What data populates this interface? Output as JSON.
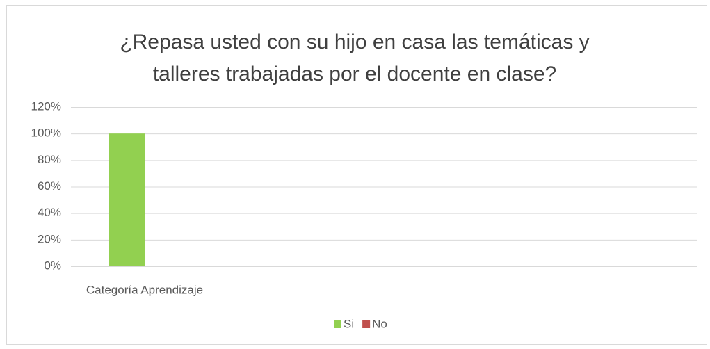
{
  "chart_data": {
    "type": "bar",
    "title": "¿Repasa usted con su hijo en casa las temáticas y talleres trabajadas por el docente en clase?",
    "categories": [
      "Categoría Aprendizaje"
    ],
    "series": [
      {
        "name": "Si",
        "color": "#92d050",
        "values": [
          100
        ]
      },
      {
        "name": "No",
        "color": "#c0504d",
        "values": [
          0
        ]
      }
    ],
    "ylim": [
      0,
      120
    ],
    "yticks": [
      {
        "value": 0,
        "label": "0%"
      },
      {
        "value": 20,
        "label": "20%"
      },
      {
        "value": 40,
        "label": "40%"
      },
      {
        "value": 60,
        "label": "60%"
      },
      {
        "value": 80,
        "label": "80%"
      },
      {
        "value": 100,
        "label": "100%"
      },
      {
        "value": 120,
        "label": "120%"
      }
    ],
    "grid": true,
    "legend": "bottom"
  }
}
